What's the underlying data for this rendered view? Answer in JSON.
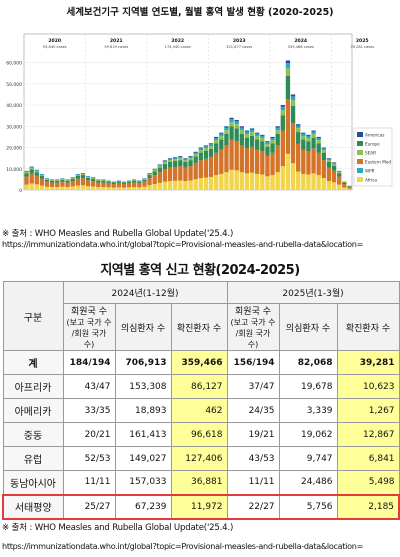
{
  "chart_data": {
    "type": "bar",
    "title": "세계보건기구 지역별 연도별, 월별 홍역 발생 현황 (2020-2025)",
    "stacked": true,
    "ylim": [
      0,
      65000
    ],
    "yticks": [
      "0",
      "10,000",
      "20,000",
      "30,000",
      "40,000",
      "50,000",
      "60,000"
    ],
    "years": [
      {
        "label": "2020",
        "cases": "93,840 cases"
      },
      {
        "label": "2021",
        "cases": "59,619 cases"
      },
      {
        "label": "2022",
        "cases": "174,340 cases"
      },
      {
        "label": "2023",
        "cases": "321,877 cases"
      },
      {
        "label": "2024",
        "cases": "359,466 cases"
      },
      {
        "label": "2025",
        "cases": "39,281 cases"
      }
    ],
    "legend": [
      "Americas",
      "Europe",
      "SEAR",
      "Eastern Med",
      "WPR",
      "Africa"
    ],
    "colors": {
      "Africa": "#f2d54a",
      "Eastern Med": "#d4742a",
      "Europe": "#2e8b57",
      "SEAR": "#8fbf4f",
      "WPR": "#2aa7c9",
      "Americas": "#1f4e9b"
    },
    "monthly_totals": [
      9000,
      11000,
      9500,
      7500,
      5500,
      5000,
      5000,
      5500,
      5000,
      6000,
      7500,
      8000,
      6500,
      6000,
      5000,
      5000,
      4500,
      4000,
      4500,
      4000,
      4500,
      5000,
      4500,
      5500,
      8000,
      10000,
      12000,
      14000,
      15000,
      15500,
      16000,
      15000,
      16000,
      18000,
      20000,
      21000,
      22000,
      25000,
      27000,
      30000,
      34000,
      33000,
      30000,
      28000,
      29000,
      27000,
      26000,
      23000,
      25000,
      30000,
      40000,
      61000,
      45000,
      31000,
      27000,
      26000,
      28000,
      25000,
      20000,
      15000,
      13000,
      9000,
      4000,
      2000
    ],
    "series_share": {
      "Africa": 0.28,
      "Eastern Med": 0.42,
      "Europe": 0.18,
      "SEAR": 0.06,
      "WPR": 0.04,
      "Americas": 0.02
    }
  },
  "text": {
    "source_1": "※ 출처 : WHO Measles and Rubella Global Update('25.4.)",
    "url_1": "https://immunizationdata.who.int/global?topic=Provisional-measles-and-rubella-data&location=",
    "table_title": "지역별 홍역 신고 현황(2024-2025)",
    "source_2": "※ 출처 : WHO Measles and Rubella Global Update('25.4.)",
    "url_2": "https://immunizationdata.who.int/global?topic=Provisional-measles-and-rubella-data&location="
  },
  "table": {
    "col_group": "구분",
    "period_2024": "2024년(1-12월)",
    "period_2025": "2025년(1-3월)",
    "h_member": "회원국 수",
    "h_member_sub": "(보고 국가 수 /회원 국가 수)",
    "h_suspect": "의심환자 수",
    "h_confirmed": "확진환자 수",
    "rows": [
      {
        "region": "계",
        "m24": "184/194",
        "s24": "706,913",
        "c24": "359,466",
        "m25": "156/194",
        "s25": "82,068",
        "c25": "39,281"
      },
      {
        "region": "아프리카",
        "m24": "43/47",
        "s24": "153,308",
        "c24": "86,127",
        "m25": "37/47",
        "s25": "19,678",
        "c25": "10,623"
      },
      {
        "region": "아메리카",
        "m24": "33/35",
        "s24": "18,893",
        "c24": "462",
        "m25": "24/35",
        "s25": "3,339",
        "c25": "1,267"
      },
      {
        "region": "중동",
        "m24": "20/21",
        "s24": "161,413",
        "c24": "96,618",
        "m25": "19/21",
        "s25": "19,062",
        "c25": "12,867"
      },
      {
        "region": "유럽",
        "m24": "52/53",
        "s24": "149,027",
        "c24": "127,406",
        "m25": "43/53",
        "s25": "9,747",
        "c25": "6,841"
      },
      {
        "region": "동남아시아",
        "m24": "11/11",
        "s24": "157,033",
        "c24": "36,881",
        "m25": "11/11",
        "s25": "24,486",
        "c25": "5,498"
      },
      {
        "region": "서태평양",
        "m24": "25/27",
        "s24": "67,239",
        "c24": "11,972",
        "m25": "22/27",
        "s25": "5,756",
        "c25": "2,185"
      }
    ]
  }
}
